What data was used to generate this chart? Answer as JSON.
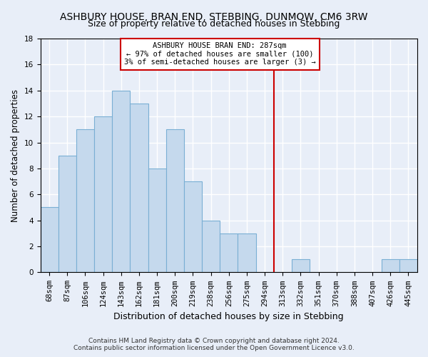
{
  "title": "ASHBURY HOUSE, BRAN END, STEBBING, DUNMOW, CM6 3RW",
  "subtitle": "Size of property relative to detached houses in Stebbing",
  "xlabel": "Distribution of detached houses by size in Stebbing",
  "ylabel": "Number of detached properties",
  "bar_labels": [
    "68sqm",
    "87sqm",
    "106sqm",
    "124sqm",
    "143sqm",
    "162sqm",
    "181sqm",
    "200sqm",
    "219sqm",
    "238sqm",
    "256sqm",
    "275sqm",
    "294sqm",
    "313sqm",
    "332sqm",
    "351sqm",
    "370sqm",
    "388sqm",
    "407sqm",
    "426sqm",
    "445sqm"
  ],
  "bar_values": [
    5,
    9,
    11,
    12,
    14,
    13,
    8,
    11,
    7,
    4,
    3,
    3,
    0,
    0,
    1,
    0,
    0,
    0,
    0,
    1,
    1
  ],
  "bar_color": "#c5d9ed",
  "bar_edge_color": "#7aafd4",
  "vline_x": 12.5,
  "vline_color": "#cc0000",
  "annotation_title": "ASHBURY HOUSE BRAN END: 287sqm",
  "annotation_line1": "← 97% of detached houses are smaller (100)",
  "annotation_line2": "3% of semi-detached houses are larger (3) →",
  "annotation_box_facecolor": "#ffffff",
  "annotation_box_edge": "#cc0000",
  "footer_line1": "Contains HM Land Registry data © Crown copyright and database right 2024.",
  "footer_line2": "Contains public sector information licensed under the Open Government Licence v3.0.",
  "ylim": [
    0,
    18
  ],
  "yticks": [
    0,
    2,
    4,
    6,
    8,
    10,
    12,
    14,
    16,
    18
  ],
  "background_color": "#e8eef8",
  "grid_color": "#ffffff",
  "title_fontsize": 10,
  "subtitle_fontsize": 9,
  "xlabel_fontsize": 9,
  "ylabel_fontsize": 8.5,
  "tick_fontsize": 7.5,
  "footer_fontsize": 6.5
}
